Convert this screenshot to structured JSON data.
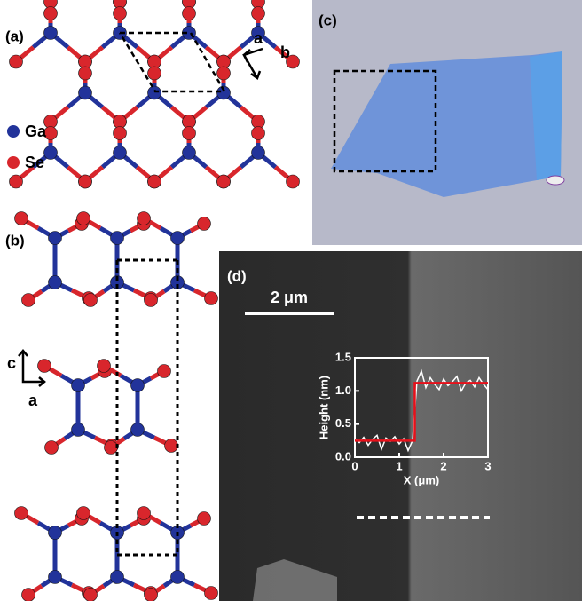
{
  "panels": {
    "a": {
      "label": "(a)",
      "legend": [
        {
          "label": "Ga",
          "color": "#22339a"
        },
        {
          "label": "Se",
          "color": "#d8262c"
        }
      ],
      "axes": [
        "a",
        "b"
      ]
    },
    "b": {
      "label": "(b)",
      "axes": [
        "c",
        "a"
      ]
    },
    "c": {
      "label": "(c)"
    },
    "d": {
      "label": "(d)",
      "scale_bar": "2 μm"
    }
  },
  "chart_data": {
    "type": "line",
    "xlabel": "X (μm)",
    "ylabel": "Height (nm)",
    "xlim": [
      0,
      3
    ],
    "ylim": [
      0,
      1.5
    ],
    "xticks": [
      0,
      1,
      2,
      3
    ],
    "yticks": [
      {
        "value": 0,
        "label": "0.0"
      },
      {
        "value": 0.5,
        "label": "0.5"
      },
      {
        "value": 1,
        "label": "1.0"
      },
      {
        "value": 1.5,
        "label": "1.5"
      }
    ],
    "series": [
      {
        "color": "#ffffff",
        "x": [
          0,
          0.1,
          0.2,
          0.3,
          0.4,
          0.5,
          0.6,
          0.7,
          0.8,
          0.9,
          1,
          1.1,
          1.2,
          1.3,
          1.4,
          1.5,
          1.6,
          1.7,
          1.8,
          1.9,
          2,
          2.1,
          2.2,
          2.3,
          2.4,
          2.5,
          2.6,
          2.7,
          2.8,
          2.9,
          3
        ],
        "values": [
          0.28,
          0.22,
          0.3,
          0.18,
          0.27,
          0.33,
          0.12,
          0.29,
          0.24,
          0.31,
          0.2,
          0.28,
          0.1,
          0.25,
          1.15,
          1.3,
          1.05,
          1.2,
          1.1,
          1.02,
          1.18,
          1.08,
          1.14,
          1.22,
          1.0,
          1.12,
          1.16,
          1.06,
          1.2,
          1.1,
          1.02
        ]
      },
      {
        "color": "#e8101a",
        "x": [
          0,
          1.35,
          1.35,
          3
        ],
        "values": [
          0.25,
          0.25,
          1.12,
          1.12
        ]
      }
    ]
  }
}
